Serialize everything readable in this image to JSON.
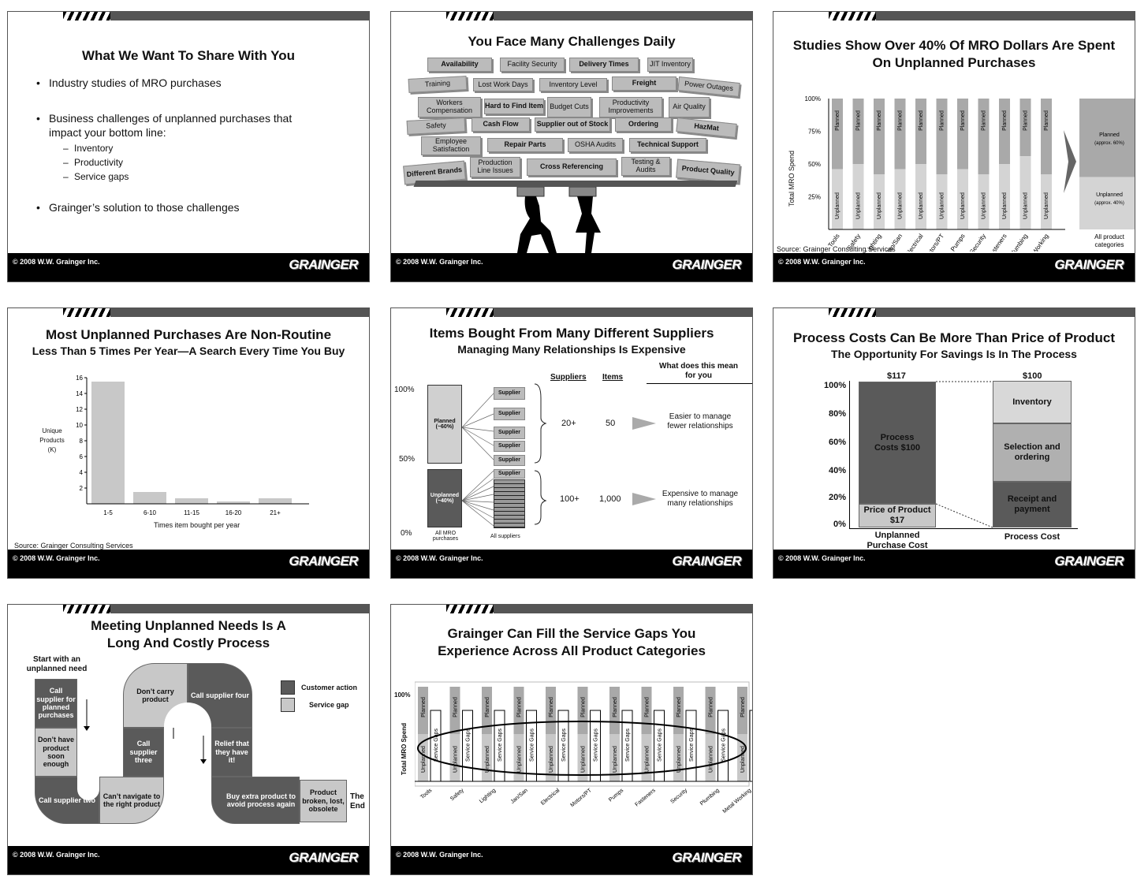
{
  "footer": {
    "copyright": "© 2008 W.W. Grainger Inc.",
    "brand": "GRAINGER"
  },
  "slide1": {
    "title": "What We Want To Share With You",
    "bullets": [
      "Industry studies of MRO purchases",
      "Business challenges of unplanned purchases that impact your bottom line:",
      "Grainger’s solution to those challenges"
    ],
    "subbullets": [
      "Inventory",
      "Productivity",
      "Service gaps"
    ]
  },
  "slide2": {
    "title": "You Face Many Challenges Daily",
    "blocks": [
      "Availability",
      "Facility Security",
      "Delivery Times",
      "JIT Inventory",
      "Training",
      "Lost Work Days",
      "Inventory Level",
      "Freight",
      "Power Outages",
      "Workers Compensation",
      "Hard to Find Item",
      "Budget Cuts",
      "Productivity Improvements",
      "Air Quality",
      "Safety",
      "Cash Flow",
      "Supplier out of Stock",
      "Ordering",
      "HazMat",
      "Employee Satisfaction",
      "Repair Parts",
      "OSHA Audits",
      "Technical Support",
      "Different Brands",
      "Production Line Issues",
      "Cross Referencing",
      "Testing & Audits",
      "Product Quality"
    ]
  },
  "slide3": {
    "title": "Studies Show Over 40% Of MRO Dollars Are Spent On Unplanned Purchases",
    "ylabel": "Total MRO Spend",
    "source": "Source: Grainger Consulting Services",
    "planned_label": "Planned",
    "unplanned_label": "Unplanned",
    "summary_planned": "Planned (approx. 60%)",
    "summary_unplanned": "Unplanned (approx. 40%)",
    "summary_category": "All product categories"
  },
  "slide4": {
    "title": "Most Unplanned Purchases Are Non-Routine",
    "subtitle": "Less Than 5 Times Per Year—A Search Every Time You Buy",
    "ylabel": "Unique Products (K)",
    "xlabel": "Times item bought per year",
    "source": "Source:  Grainger Consulting Services"
  },
  "slide5": {
    "title": "Items Bought From Many Different Suppliers",
    "subtitle": "Managing Many Relationships Is Expensive",
    "col_suppliers": "Suppliers",
    "col_items": "Items",
    "col_meaning": "What does this mean for you",
    "planned": "Planned (~60%)",
    "unplanned": "Unplanned (~40%)",
    "supplier": "Supplier",
    "row1": {
      "suppliers": "20+",
      "items": "50",
      "meaning": "Easier to manage fewer relationships"
    },
    "row2": {
      "suppliers": "100+",
      "items": "1,000",
      "meaning": "Expensive to manage many relationships"
    },
    "xlab1": "All MRO purchases",
    "xlab2": "All suppliers",
    "y100": "100%",
    "y50": "50%",
    "y0": "0%"
  },
  "slide6": {
    "title": "Process Costs Can Be More Than Price of Product",
    "subtitle": "The Opportunity For Savings Is In The Process",
    "left_total": "$117",
    "right_total": "$100",
    "process_costs": "Process Costs $100",
    "price_of_product": "Price of Product $17",
    "inventory": "Inventory",
    "selection": "Selection and ordering",
    "receipt": "Receipt and payment",
    "left_label": "Unplanned Purchase Cost",
    "right_label": "Process Cost",
    "yticks": [
      "100%",
      "80%",
      "60%",
      "40%",
      "20%",
      "0%"
    ]
  },
  "slide7": {
    "title": "Meeting Unplanned Needs Is A Long And Costly Process",
    "start": "Start with an unplanned need",
    "legend_action": "Customer action",
    "legend_gap": "Service gap",
    "steps": [
      "Call supplier for planned purchases",
      "Don’t have product soon enough",
      "Call supplier two",
      "Can’t navigate to the right product",
      "Call supplier three",
      "Don’t carry product",
      "Call supplier four",
      "Relief that they have it!",
      "Buy extra product to avoid process again",
      "Product broken, lost, obsolete"
    ],
    "end": "The End"
  },
  "slide8": {
    "title": "Grainger Can Fill the Service Gaps You Experience Across All Product Categories",
    "ylabel": "Total MRO Spend",
    "y100": "100%",
    "planned": "Planned",
    "unplanned": "Unplanned",
    "gaps": "Service Gaps",
    "categories": [
      "Tools",
      "Safety",
      "Lighting",
      "Jan/San",
      "Electrical",
      "Motors/PT",
      "Pumps",
      "Fasteners",
      "Security",
      "Plumbing",
      "Metal Working"
    ]
  },
  "chart_data": [
    {
      "type": "bar",
      "title": "Studies Show Over 40% Of MRO Dollars Are Spent On Unplanned Purchases",
      "ylabel": "Total MRO Spend",
      "categories": [
        "Tools",
        "Safety",
        "Lighting",
        "Jan/San",
        "Electrical",
        "Motors/PT",
        "Pumps",
        "Security",
        "Fasteners",
        "Plumbing",
        "Metal Working",
        "All product categories"
      ],
      "yticks": [
        "100%",
        "75%",
        "50%",
        "25%"
      ],
      "series": [
        {
          "name": "Planned",
          "values": [
            54,
            50,
            58,
            54,
            50,
            58,
            54,
            58,
            50,
            44,
            58,
            60
          ]
        },
        {
          "name": "Unplanned",
          "values": [
            46,
            50,
            42,
            46,
            50,
            42,
            46,
            42,
            50,
            56,
            42,
            40
          ]
        }
      ]
    },
    {
      "type": "bar",
      "categories": [
        "1-5",
        "6-10",
        "11-15",
        "16-20",
        "21+"
      ],
      "values": [
        15.5,
        1.5,
        0.7,
        0.3,
        0.7
      ],
      "yticks": [
        2,
        4,
        6,
        8,
        10,
        12,
        14,
        16
      ],
      "ylim": [
        0,
        16
      ]
    }
  ]
}
